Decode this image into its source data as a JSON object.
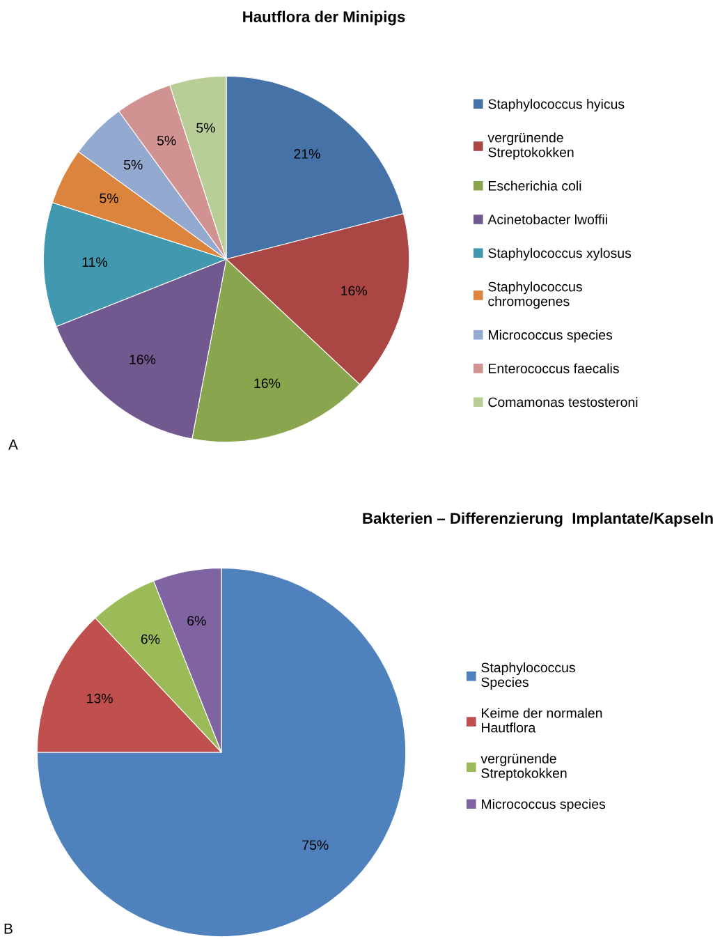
{
  "chart_data": [
    {
      "type": "pie",
      "title": "Hautflora der Minipigs",
      "categories": [
        "Staphylococcus hyicus",
        "vergrünende\nStreptokokken",
        "Escherichia coli",
        "Acinetobacter lwoffii",
        "Staphylococcus xylosus",
        "Staphylococcus\nchromogenes",
        "Micrococcus species",
        "Enterococcus faecalis",
        "Comamonas testosteroni"
      ],
      "values": [
        21,
        16,
        16,
        16,
        11,
        5,
        5,
        5,
        5
      ],
      "value_labels": [
        "21%",
        "16%",
        "16%",
        "16%",
        "11%",
        "5%",
        "5%",
        "5%",
        "5%"
      ],
      "colors": [
        "#4572a7",
        "#aa4643",
        "#89a54e",
        "#71588f",
        "#4198af",
        "#db843d",
        "#93a9cf",
        "#d19392",
        "#b9cd96"
      ],
      "legend": "right",
      "annotations": [
        "A"
      ]
    },
    {
      "type": "pie",
      "title": "Bakterien – Differenzierung  Implantate/Kapseln",
      "categories": [
        "Staphylococcus\nSpecies",
        "Keime der normalen\nHautflora",
        "vergrünende\nStreptokokken",
        "Micrococcus species"
      ],
      "values": [
        75,
        13,
        6,
        6
      ],
      "value_labels": [
        "75%",
        "13%",
        "6%",
        "6%"
      ],
      "colors": [
        "#4f81bd",
        "#c0504d",
        "#9bbb59",
        "#8064a2"
      ],
      "legend": "right",
      "annotations": [
        "B"
      ]
    }
  ]
}
